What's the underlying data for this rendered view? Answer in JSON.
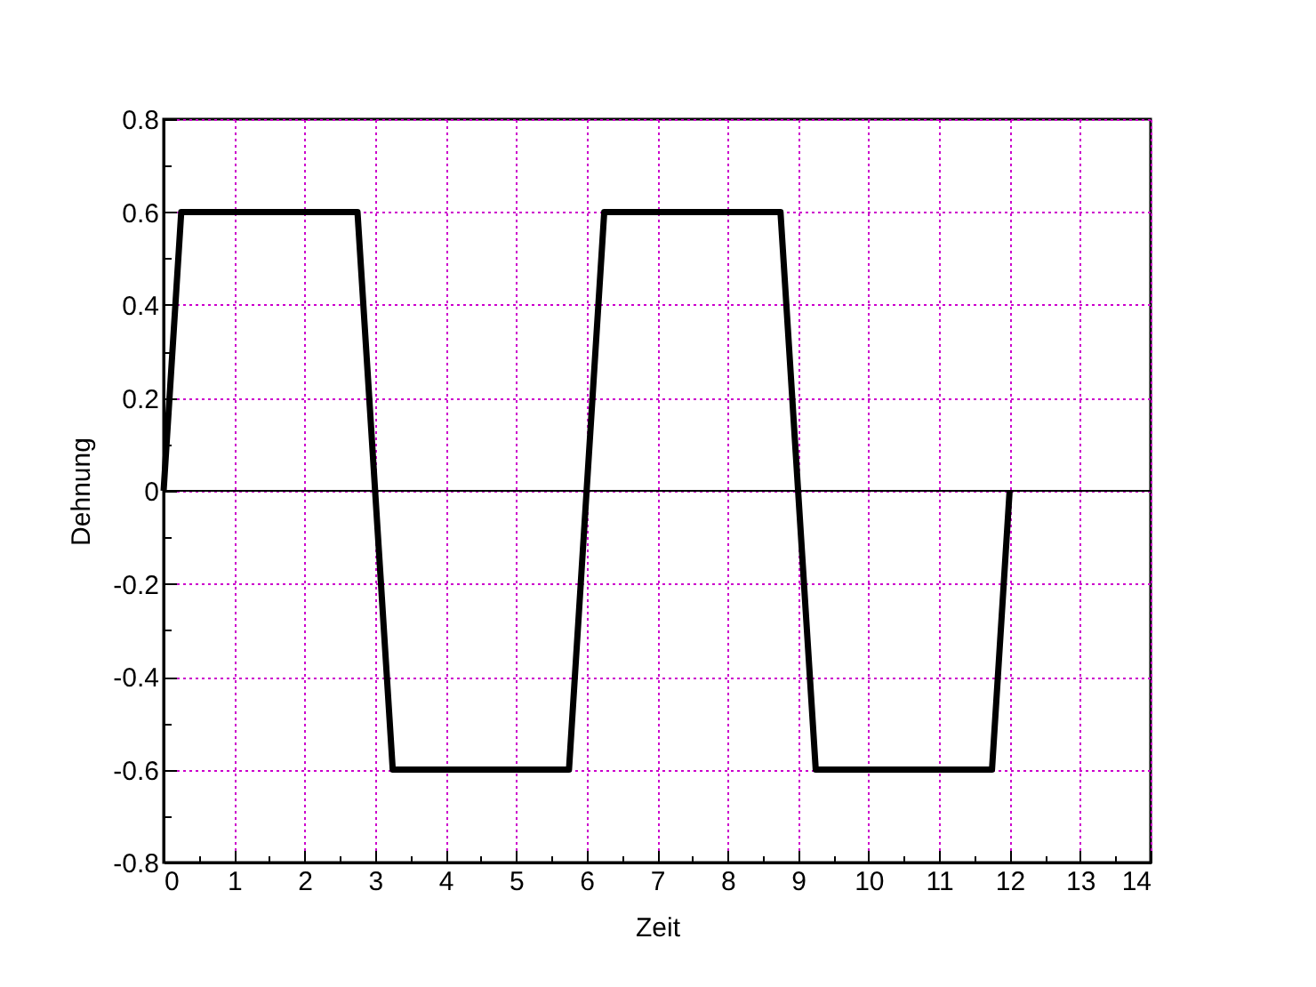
{
  "chart_data": {
    "type": "line",
    "xlabel": "Zeit",
    "ylabel": "Dehnung",
    "x": [
      0,
      0.25,
      2.75,
      3.25,
      5.75,
      6.25,
      8.75,
      9.25,
      11.75,
      12
    ],
    "series": [
      {
        "color": "#000000",
        "values": [
          0,
          0.6,
          0.6,
          -0.6,
          -0.6,
          0.6,
          0.6,
          -0.6,
          -0.6,
          0
        ]
      }
    ],
    "xlim": [
      0,
      14
    ],
    "xticks": [
      0,
      {
        "value": 0.5,
        "label": null
      },
      1,
      {
        "value": 1.5,
        "label": null
      },
      2,
      {
        "value": 2.5,
        "label": null
      },
      3,
      {
        "value": 3.5,
        "label": null
      },
      4,
      {
        "value": 4.5,
        "label": null
      },
      5,
      {
        "value": 5.5,
        "label": null
      },
      6,
      {
        "value": 6.5,
        "label": null
      },
      7,
      {
        "value": 7.5,
        "label": null
      },
      8,
      {
        "value": 8.5,
        "label": null
      },
      9,
      {
        "value": 9.5,
        "label": null
      },
      10,
      {
        "value": 10.5,
        "label": null
      },
      11,
      {
        "value": 11.5,
        "label": null
      },
      12,
      {
        "value": 12.5,
        "label": null
      },
      13,
      {
        "value": 13.5,
        "label": null
      },
      14
    ],
    "ylim": [
      -0.8,
      0.8
    ],
    "yticks": [
      -0.8,
      {
        "value": -0.7,
        "label": null
      },
      -0.6,
      {
        "value": -0.5,
        "label": null
      },
      -0.4,
      {
        "value": -0.3,
        "label": null
      },
      -0.2,
      {
        "value": -0.1,
        "label": null
      },
      0,
      {
        "value": 0.1,
        "label": null
      },
      0.2,
      {
        "value": 0.3,
        "label": null
      },
      0.4,
      {
        "value": 0.5,
        "label": null
      },
      0.6,
      {
        "value": 0.7,
        "label": null
      },
      0.8
    ],
    "grid": true,
    "legend": false,
    "marker": "none",
    "line_style": "solid",
    "ref_lines": [
      {
        "axis": "y",
        "value": 0,
        "color": "#000000"
      }
    ]
  }
}
